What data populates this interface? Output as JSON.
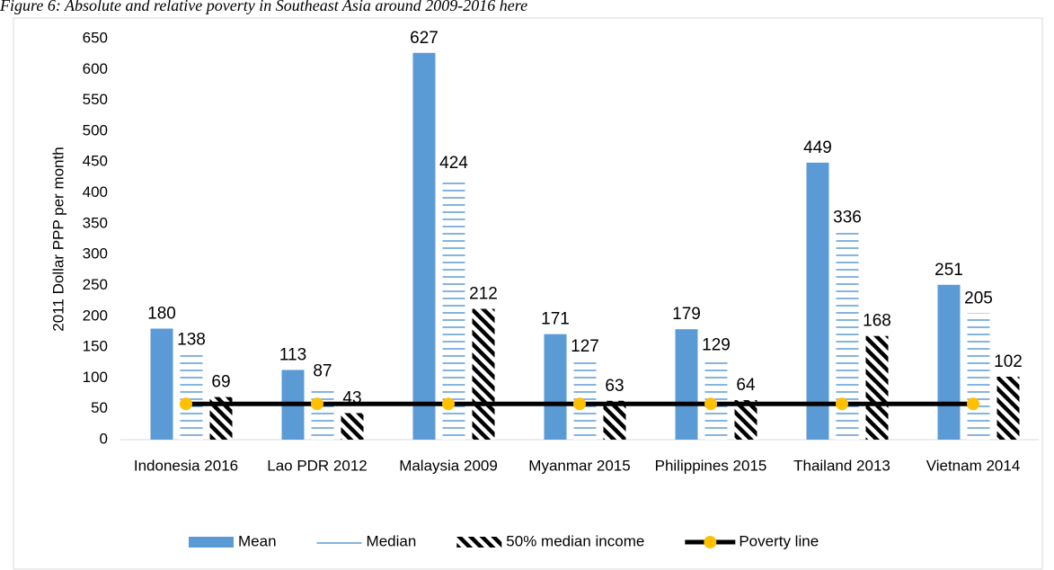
{
  "chart_data": {
    "type": "bar",
    "title": "Figure 6: Absolute and relative poverty in Southeast Asia around 2009-2016 here",
    "y_label": "2011 Dollar PPP per month",
    "categories": [
      "Indonesia 2016",
      "Lao PDR 2012",
      "Malaysia 2009",
      "Myanmar 2015",
      "Philippines 2015",
      "Thailand 2013",
      "Vietnam 2014"
    ],
    "series": [
      {
        "name": "Mean",
        "color": "#5b9bd5",
        "fill": "solid",
        "values": [
          180,
          113,
          627,
          171,
          179,
          449,
          251
        ]
      },
      {
        "name": "Median",
        "color": "#5b9bd5",
        "fill": "horizontal-lines",
        "values": [
          138,
          87,
          424,
          127,
          129,
          336,
          205
        ]
      },
      {
        "name": "50% median income",
        "color": "#000000",
        "fill": "diagonal-stripes",
        "values": [
          69,
          43,
          212,
          63,
          64,
          168,
          102
        ]
      },
      {
        "name": "Poverty line",
        "type": "line",
        "color": "#000000",
        "marker_color": "#ffc000",
        "values": [
          58,
          58,
          58,
          58,
          58,
          58,
          58
        ]
      }
    ],
    "ylim": [
      0,
      650
    ],
    "yticks": [
      0,
      50,
      100,
      150,
      200,
      250,
      300,
      350,
      400,
      450,
      500,
      550,
      600,
      650
    ],
    "grid": false,
    "legend": "bottom"
  }
}
